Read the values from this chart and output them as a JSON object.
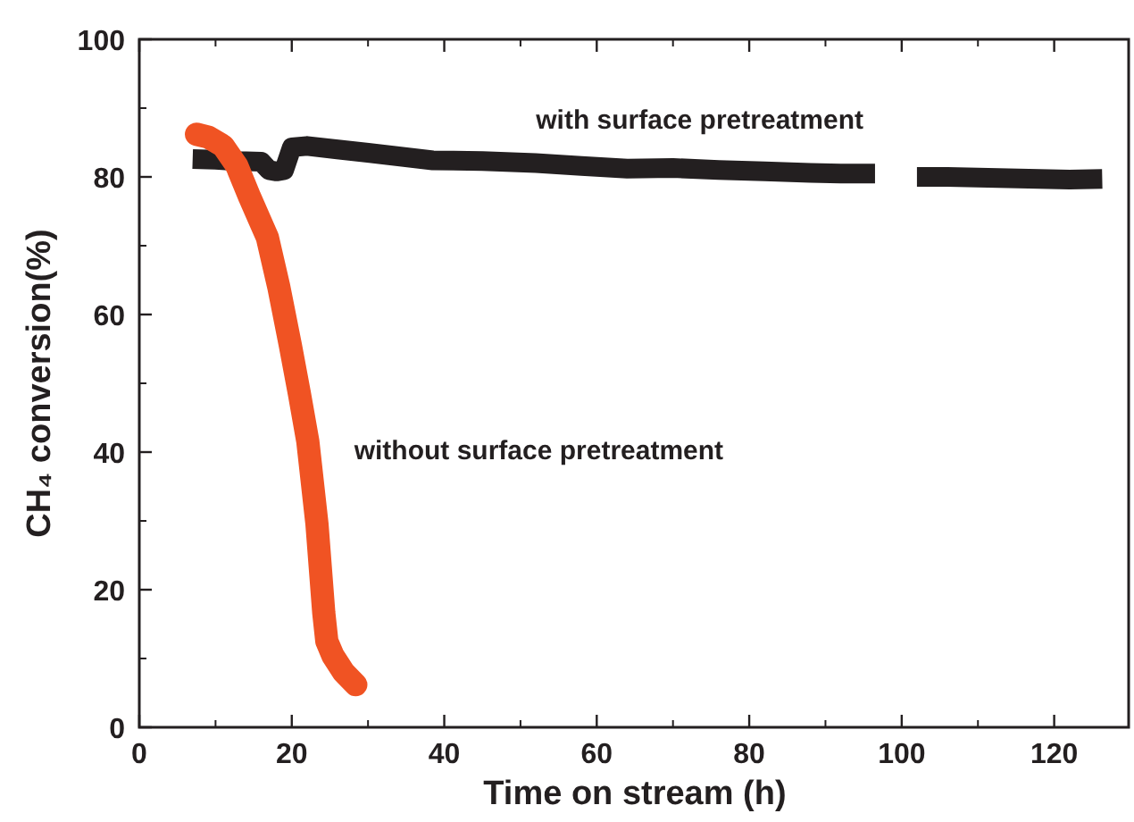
{
  "chart_data": {
    "type": "line",
    "xlabel": "Time on stream (h)",
    "ylabel": "CH₄ conversion(%)",
    "xlim": [
      0,
      130
    ],
    "ylim": [
      0,
      100
    ],
    "xticks": [
      0,
      20,
      40,
      60,
      80,
      100,
      120
    ],
    "yticks": [
      0,
      20,
      40,
      60,
      80,
      100
    ],
    "grid": false,
    "marker": "none",
    "line_style": "solid",
    "series": [
      {
        "name": "with surface pretreatment",
        "color": "#231f20",
        "x": [
          7,
          10,
          13,
          16,
          17,
          18,
          19,
          20,
          22,
          26,
          30,
          38.5,
          45,
          52,
          58,
          64,
          70,
          76,
          82,
          88,
          92,
          96.5,
          99,
          102,
          106,
          110,
          114,
          118,
          122,
          126.3
        ],
        "values": [
          82.6,
          82.5,
          82.3,
          82.2,
          81,
          80.8,
          81,
          84.3,
          84.5,
          84,
          83.5,
          82.4,
          82.3,
          82,
          81.6,
          81.2,
          81.3,
          81,
          80.8,
          80.6,
          80.5,
          80.5,
          null,
          80,
          80,
          79.9,
          79.8,
          79.7,
          79.6,
          79.7
        ]
      },
      {
        "name": "without surface pretreatment",
        "color": "#f05323",
        "x": [
          7.5,
          9,
          11,
          12.8,
          14.5,
          16.8,
          18.3,
          19.8,
          21,
          22.1,
          23.3,
          24.2,
          24.6,
          25.4,
          26.8,
          28.4
        ],
        "values": [
          86.2,
          85.8,
          84.5,
          81.6,
          77,
          71.2,
          64,
          55.6,
          48.5,
          41.6,
          29.6,
          16.6,
          12.5,
          10.4,
          8,
          6.2
        ]
      }
    ]
  }
}
